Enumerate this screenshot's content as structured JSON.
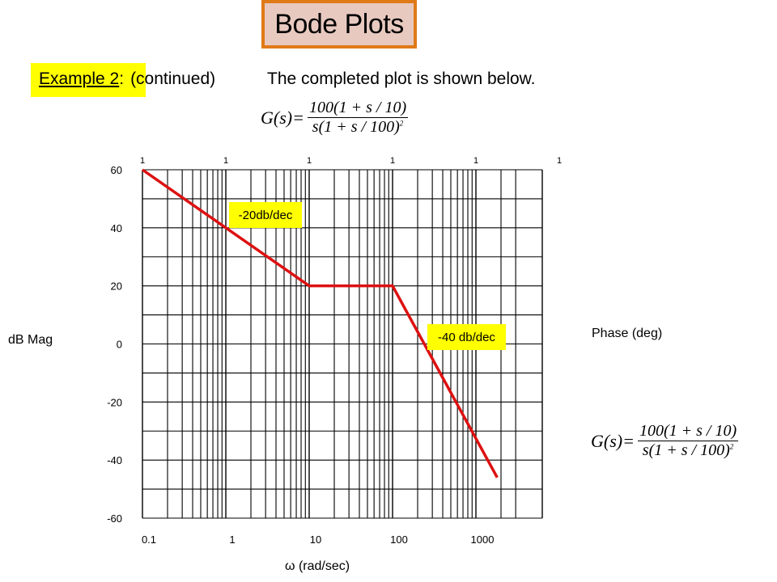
{
  "title": "Bode Plots",
  "heading": {
    "example_label": "Example 2",
    "colon": ":",
    "continued": "(continued)",
    "description": "The completed plot is shown below."
  },
  "formula": {
    "lhs": "G(s)=",
    "numerator": "100(1 + s / 10)",
    "denominator": "s(1 + s / 100)",
    "exponent": "2"
  },
  "colors": {
    "line": "#dd1111",
    "grid": "#000000",
    "label_bg": "#ffff00",
    "title_bg": "#e8c9c0",
    "title_border": "#e07a18"
  },
  "chart_data": {
    "type": "line",
    "xscale": "log",
    "xlabel": "ω (rad/sec)",
    "ylabel": "dB Mag",
    "y2label": "Phase (deg)",
    "xlim": [
      0.1,
      3000
    ],
    "ylim": [
      -60,
      60
    ],
    "x_ticks": [
      "0.1",
      "1",
      "10",
      "100",
      "1000"
    ],
    "y_ticks": [
      "60",
      "40",
      "20",
      "0",
      "-20",
      "-40",
      "-60"
    ],
    "top_ticks": [
      "1",
      "1",
      "1",
      "1",
      "1",
      "1"
    ],
    "grid": true,
    "series": [
      {
        "x": [
          0.1,
          10,
          100,
          1800
        ],
        "y": [
          60,
          20,
          20,
          -46
        ]
      }
    ],
    "annotations": [
      "-20db/dec",
      "-40 db/dec"
    ]
  }
}
